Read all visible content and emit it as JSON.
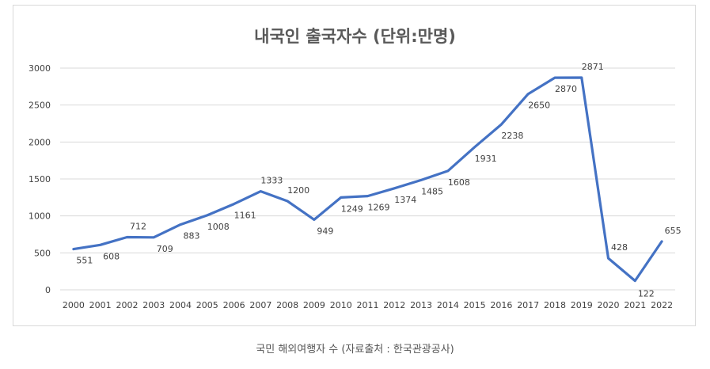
{
  "caption": "국민 해외여행자 수 (자료출처 : 한국관광공사)",
  "colors": {
    "line": "#4472C4",
    "grid": "#d9d9d9",
    "axis_text": "#404040",
    "label_text": "#404040"
  },
  "chart_data": {
    "type": "line",
    "title": "내국인 출국자수 (단위:만명)",
    "xlabel": "",
    "ylabel": "",
    "ylim": [
      0,
      3000
    ],
    "yticks": [
      0,
      500,
      1000,
      1500,
      2000,
      2500,
      3000
    ],
    "grid": true,
    "legend": "none",
    "categories": [
      "2000",
      "2001",
      "2002",
      "2003",
      "2004",
      "2005",
      "2006",
      "2007",
      "2008",
      "2009",
      "2010",
      "2011",
      "2012",
      "2013",
      "2014",
      "2015",
      "2016",
      "2017",
      "2018",
      "2019",
      "2020",
      "2021",
      "2022"
    ],
    "series": [
      {
        "values": [
          551,
          608,
          712,
          709,
          883,
          1008,
          1161,
          1333,
          1200,
          949,
          1249,
          1269,
          1374,
          1485,
          1608,
          1931,
          2238,
          2650,
          2870,
          2871,
          428,
          122,
          655
        ]
      }
    ]
  }
}
